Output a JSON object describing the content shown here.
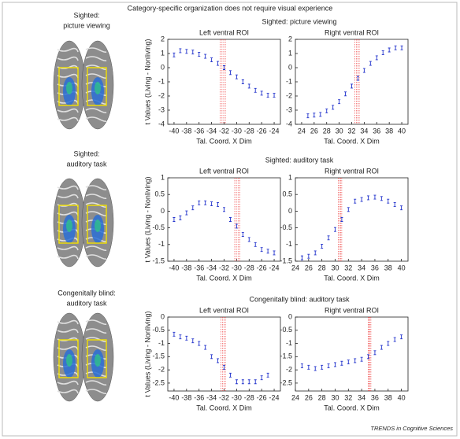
{
  "title": "Category-specific organization does not require visual experience",
  "credit": "TRENDS in Cognitive Sciences",
  "panels": [
    {
      "label_lines": [
        "Sighted:",
        "picture viewing"
      ],
      "heading": "Sighted: picture viewing"
    },
    {
      "label_lines": [
        "Sighted:",
        "auditory task"
      ],
      "heading": "Sighted: auditory task"
    },
    {
      "label_lines": [
        "Congenitally blind:",
        "auditory task"
      ],
      "heading": "Congenitally blind: auditory task"
    }
  ],
  "chart_data": [
    {
      "type": "scatter",
      "title": "Left ventral ROI",
      "x_label": "Tal. Coord. X Dim",
      "y_label": "t Values (Living - Nonliving)",
      "color": "#2233cc",
      "band": [
        -32.6,
        -31.8
      ],
      "x": [
        -40,
        -39,
        -38,
        -37,
        -36,
        -35,
        -34,
        -33,
        -32,
        -31,
        -30,
        -29,
        -28,
        -27,
        -26,
        -25,
        -24
      ],
      "values": [
        0.9,
        1.2,
        1.15,
        1.1,
        0.95,
        0.8,
        0.55,
        0.3,
        0,
        -0.35,
        -0.65,
        -1,
        -1.3,
        -1.6,
        -1.8,
        -1.95,
        -1.95
      ],
      "xlim": [
        -41,
        -23
      ],
      "ylim": [
        -4,
        2
      ],
      "xticks": [
        -40,
        -38,
        -36,
        -34,
        -32,
        -30,
        -28,
        -26,
        -24
      ],
      "yticks": [
        2,
        1,
        0,
        -1,
        -2,
        -3,
        -4
      ]
    },
    {
      "type": "scatter",
      "title": "Right ventral ROI",
      "x_label": "Tal. Coord. X Dim",
      "color": "#2233cc",
      "band": [
        32.5,
        33.2
      ],
      "x": [
        25,
        26,
        27,
        28,
        29,
        30,
        31,
        32,
        33,
        34,
        35,
        36,
        37,
        38,
        39,
        40
      ],
      "values": [
        -3.4,
        -3.35,
        -3.3,
        -3.05,
        -2.8,
        -2.4,
        -1.85,
        -1.3,
        -0.75,
        -0.2,
        0.3,
        0.7,
        1.05,
        1.25,
        1.4,
        1.4
      ],
      "xlim": [
        23,
        41
      ],
      "ylim": [
        -4,
        2
      ],
      "xticks": [
        24,
        26,
        28,
        30,
        32,
        34,
        36,
        38,
        40
      ],
      "yticks": [
        2,
        1,
        0,
        -1,
        -2,
        -3,
        -4
      ]
    },
    {
      "type": "scatter",
      "title": "Left ventral ROI",
      "x_label": "Tal. Coord. X Dim",
      "y_label": "t Values (Living - Nonliving)",
      "color": "#2233cc",
      "band": [
        -30.3,
        -29.5
      ],
      "x": [
        -40,
        -39,
        -38,
        -37,
        -36,
        -35,
        -34,
        -33,
        -32,
        -31,
        -30,
        -29,
        -28,
        -27,
        -26,
        -25,
        -24
      ],
      "values": [
        -0.25,
        -0.2,
        -0.05,
        0.1,
        0.25,
        0.25,
        0.22,
        0.2,
        0.05,
        -0.25,
        -0.45,
        -0.7,
        -0.85,
        -1,
        -1.15,
        -1.2,
        -1.25
      ],
      "xlim": [
        -41,
        -23
      ],
      "ylim": [
        -1.5,
        1
      ],
      "xticks": [
        -40,
        -38,
        -36,
        -34,
        -32,
        -30,
        -28,
        -26,
        -24
      ],
      "yticks": [
        1,
        0.5,
        0,
        -0.5,
        -1,
        -1.5
      ]
    },
    {
      "type": "scatter",
      "title": "Right ventral ROI",
      "x_label": "Tal. Coord. X Dim",
      "color": "#2233cc",
      "band": [
        30.5,
        31
      ],
      "x": [
        25,
        26,
        27,
        28,
        29,
        30,
        31,
        32,
        33,
        34,
        35,
        36,
        37,
        38,
        39,
        40
      ],
      "values": [
        -1.4,
        -1.35,
        -1.25,
        -1.05,
        -0.8,
        -0.55,
        -0.25,
        0.05,
        0.3,
        0.35,
        0.4,
        0.42,
        0.38,
        0.3,
        0.2,
        0.1
      ],
      "xlim": [
        24,
        41
      ],
      "ylim": [
        -1.5,
        1
      ],
      "xticks": [
        24,
        26,
        28,
        30,
        32,
        34,
        36,
        38,
        40
      ],
      "yticks": [
        1,
        0.5,
        0,
        -0.5,
        -1,
        -1.5
      ]
    },
    {
      "type": "scatter",
      "title": "Left ventral ROI",
      "x_label": "Tal. Coord. X Dim",
      "y_label": "t Values (Living - Nonliving)",
      "color": "#2233cc",
      "band": [
        -32.5,
        -31.8
      ],
      "x": [
        -40,
        -39,
        -38,
        -37,
        -36,
        -35,
        -34,
        -33,
        -32,
        -31,
        -30,
        -29,
        -28,
        -27,
        -26,
        -25
      ],
      "values": [
        -0.65,
        -0.75,
        -0.8,
        -0.9,
        -1,
        -1.15,
        -1.5,
        -1.65,
        -1.9,
        -2.2,
        -2.45,
        -2.45,
        -2.45,
        -2.45,
        -2.3,
        -2.2
      ],
      "xlim": [
        -41,
        -23
      ],
      "ylim": [
        -2.8,
        0
      ],
      "xticks": [
        -40,
        -38,
        -36,
        -34,
        -32,
        -30,
        -28,
        -26,
        -24
      ],
      "yticks": [
        0,
        -0.5,
        -1,
        -1.5,
        -2,
        -2.5
      ]
    },
    {
      "type": "scatter",
      "title": "Right ventral ROI",
      "x_label": "Tal. Coord. X Dim",
      "color": "#2233cc",
      "band": [
        35,
        35.4
      ],
      "x": [
        25,
        26,
        27,
        28,
        29,
        30,
        31,
        32,
        33,
        34,
        35,
        36,
        37,
        38,
        39,
        40
      ],
      "values": [
        -1.85,
        -1.9,
        -1.95,
        -1.9,
        -1.85,
        -1.8,
        -1.75,
        -1.7,
        -1.65,
        -1.6,
        -1.5,
        -1.35,
        -1.15,
        -1,
        -0.85,
        -0.75
      ],
      "xlim": [
        24,
        41
      ],
      "ylim": [
        -2.8,
        0
      ],
      "xticks": [
        24,
        26,
        28,
        30,
        32,
        34,
        36,
        38,
        40
      ],
      "yticks": [
        0,
        -0.5,
        -1,
        -1.5,
        -2,
        -2.5
      ]
    }
  ]
}
